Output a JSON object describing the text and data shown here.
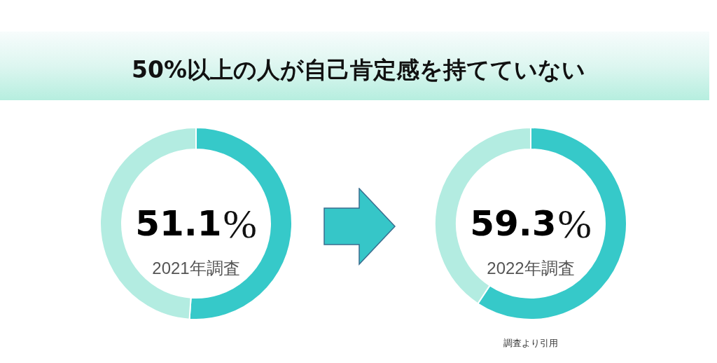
{
  "chart_data": [
    {
      "type": "donut",
      "title": "50%以上の人が自己肯定感を持てていない",
      "subtitle": "2021年調査",
      "categories": [
        null,
        null
      ],
      "values": [
        51.1,
        48.9
      ],
      "colors": [
        "#36c9c9",
        "#b3ece1"
      ],
      "value_labels": [
        "51.1%",
        null
      ]
    },
    {
      "type": "donut",
      "subtitle": "2022年調査",
      "categories": [
        null,
        null
      ],
      "values": [
        59.3,
        40.7
      ],
      "colors": [
        "#36c9c9",
        "#b3ece1"
      ],
      "value_labels": [
        "59.3%",
        null
      ],
      "annotations": [
        "調査より引用"
      ]
    }
  ]
}
